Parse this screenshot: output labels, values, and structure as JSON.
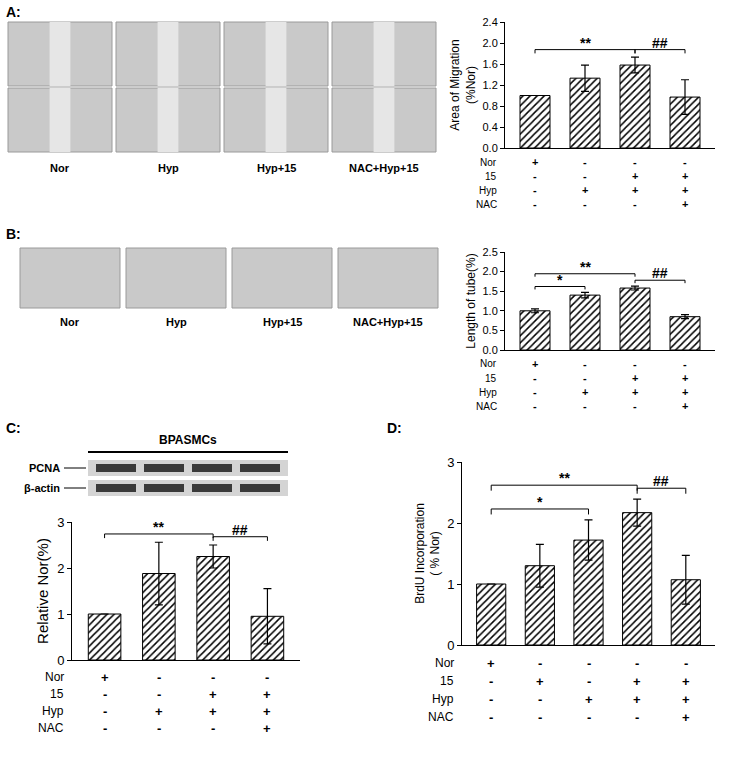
{
  "chart_data": [
    {
      "panel": "A:",
      "type": "bar",
      "ylabel": "Area of Migration\n(%Nor)",
      "categories": [
        null,
        null,
        null,
        null
      ],
      "values": [
        1.0,
        1.33,
        1.58,
        0.97
      ],
      "errors": [
        0,
        0.25,
        0.15,
        0.33
      ],
      "ylim": [
        0,
        2.4
      ],
      "yticks": [
        {
          "value": 0,
          "label": "0.0"
        },
        0.4,
        0.8,
        1.2,
        1.6,
        {
          "value": 2,
          "label": "2.0"
        },
        2.4
      ],
      "treatments": [
        {
          "label": "Nor",
          "signs": [
            "+",
            "-",
            "-",
            "-"
          ]
        },
        {
          "label": "15",
          "signs": [
            "-",
            "-",
            "+",
            "+"
          ]
        },
        {
          "label": "Hyp",
          "signs": [
            "-",
            "+",
            "+",
            "+"
          ]
        },
        {
          "label": "NAC",
          "signs": [
            "-",
            "-",
            "-",
            "+"
          ]
        }
      ],
      "significance": [
        {
          "from": 0,
          "to": 2,
          "label": "**"
        },
        {
          "from": 2,
          "to": 3,
          "label": "##"
        }
      ],
      "color": "#000000",
      "grid": false,
      "tick_labels": "y"
    },
    {
      "panel": "B:",
      "type": "bar",
      "ylabel": "Length of tube(%)",
      "categories": [
        null,
        null,
        null,
        null
      ],
      "values": [
        1.0,
        1.4,
        1.58,
        0.85
      ],
      "errors": [
        0.05,
        0.07,
        0.05,
        0.05
      ],
      "ylim": [
        0,
        2.5
      ],
      "yticks": [
        {
          "value": 0,
          "label": "0.0"
        },
        0.5,
        {
          "value": 1,
          "label": "1.0"
        },
        1.5,
        {
          "value": 2,
          "label": "2.0"
        },
        2.5
      ],
      "treatments": [
        {
          "label": "Nor",
          "signs": [
            "+",
            "-",
            "-",
            "-"
          ]
        },
        {
          "label": "15",
          "signs": [
            "-",
            "-",
            "+",
            "+"
          ]
        },
        {
          "label": "Hyp",
          "signs": [
            "-",
            "+",
            "+",
            "+"
          ]
        },
        {
          "label": "NAC",
          "signs": [
            "-",
            "-",
            "-",
            "+"
          ]
        }
      ],
      "significance": [
        {
          "from": 0,
          "to": 1,
          "label": "*"
        },
        {
          "from": 0,
          "to": 2,
          "label": "**"
        },
        {
          "from": 2,
          "to": 3,
          "label": "##"
        }
      ],
      "color": "#000000",
      "grid": false,
      "tick_labels": "y"
    },
    {
      "panel": "C:",
      "type": "bar",
      "ylabel": "Relative Nor(%)",
      "categories": [
        null,
        null,
        null,
        null
      ],
      "values": [
        1.0,
        1.88,
        2.25,
        0.95
      ],
      "errors": [
        0,
        0.68,
        0.25,
        0.6
      ],
      "ylim": [
        0,
        3
      ],
      "yticks": [
        0,
        1,
        2,
        3
      ],
      "treatments": [
        {
          "label": "Nor",
          "signs": [
            "+",
            "-",
            "-",
            "-"
          ]
        },
        {
          "label": "15",
          "signs": [
            "-",
            "-",
            "+",
            "+"
          ]
        },
        {
          "label": "Hyp",
          "signs": [
            "-",
            "+",
            "+",
            "+"
          ]
        },
        {
          "label": "NAC",
          "signs": [
            "-",
            "-",
            "-",
            "+"
          ]
        }
      ],
      "significance": [
        {
          "from": 0,
          "to": 2,
          "label": "**"
        },
        {
          "from": 2,
          "to": 3,
          "label": "##"
        }
      ],
      "color": "#000000",
      "grid": false,
      "tick_labels": "y"
    },
    {
      "panel": "D:",
      "type": "bar",
      "ylabel": "BrdU Incorporation\n( % Nor)",
      "categories": [
        null,
        null,
        null,
        null,
        null
      ],
      "values": [
        1.0,
        1.3,
        1.72,
        2.17,
        1.07
      ],
      "errors": [
        0,
        0.35,
        0.33,
        0.22,
        0.4
      ],
      "ylim": [
        0,
        3
      ],
      "yticks": [
        0,
        1,
        2,
        3
      ],
      "treatments": [
        {
          "label": "Nor",
          "signs": [
            "+",
            "-",
            "-",
            "-",
            "-"
          ]
        },
        {
          "label": "15",
          "signs": [
            "-",
            "+",
            "-",
            "+",
            "+"
          ]
        },
        {
          "label": "Hyp",
          "signs": [
            "-",
            "-",
            "+",
            "+",
            "+"
          ]
        },
        {
          "label": "NAC",
          "signs": [
            "-",
            "-",
            "-",
            "-",
            "+"
          ]
        }
      ],
      "significance": [
        {
          "from": 0,
          "to": 2,
          "label": "*"
        },
        {
          "from": 0,
          "to": 3,
          "label": "**"
        },
        {
          "from": 3,
          "to": 4,
          "label": "##"
        }
      ],
      "color": "#000000",
      "grid": false,
      "tick_labels": "y"
    }
  ],
  "micrographs": [
    {
      "panel": "A:",
      "captions": [
        "Nor",
        "Hyp",
        "Hyp+15",
        "NAC+Hyp+15"
      ]
    },
    {
      "panel": "B:",
      "captions": [
        "Nor",
        "Hyp",
        "Hyp+15",
        "NAC+Hyp+15"
      ]
    }
  ],
  "blot": {
    "title": "BPASMCs",
    "bands": [
      "PCNA",
      "β-actin"
    ]
  }
}
